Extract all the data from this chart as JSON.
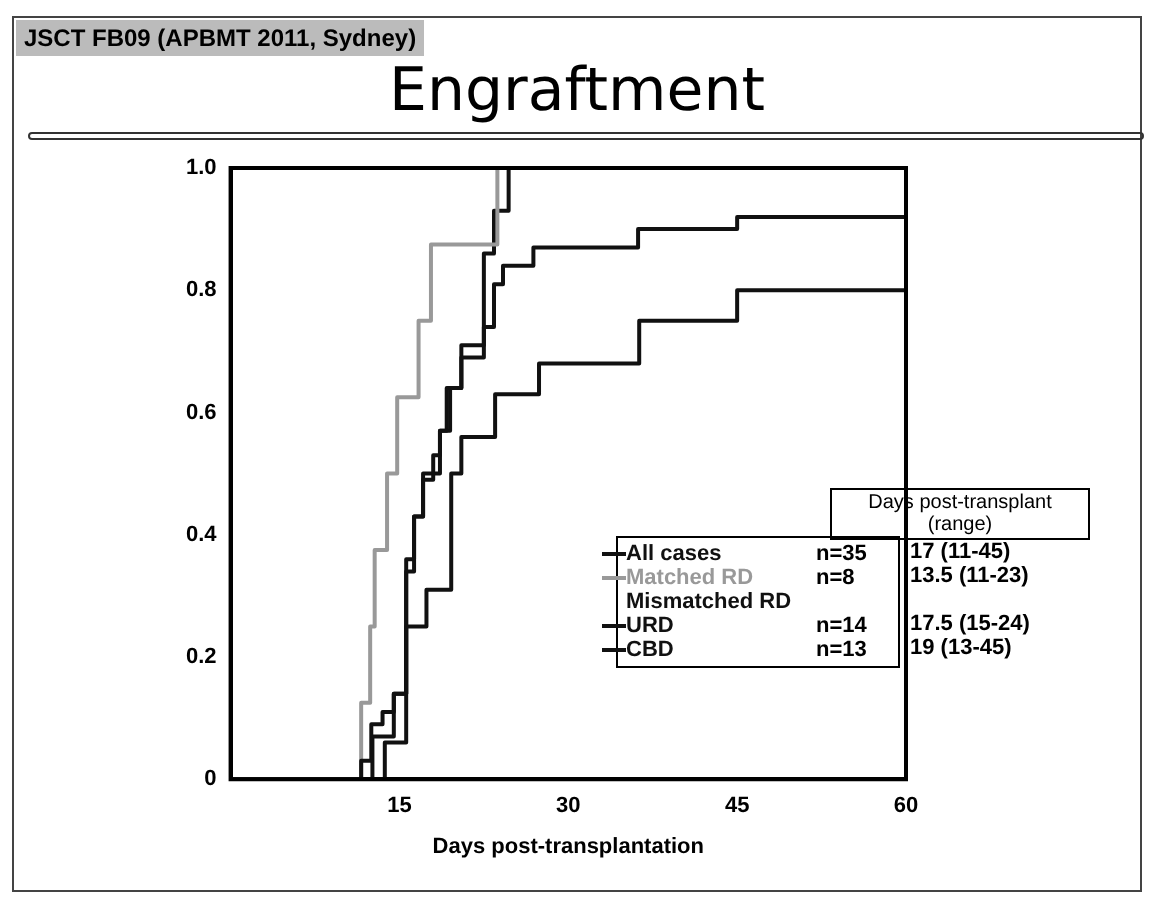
{
  "chart_data": {
    "type": "step",
    "title": "Engraftment",
    "subtitle": "JSCT FB09 (APBMT 2011, Sydney)",
    "xlabel": "Days post-transplantation",
    "xlim": [
      0,
      60
    ],
    "xticks": [
      15,
      30,
      45,
      60
    ],
    "ylim": [
      0,
      1
    ],
    "yticks": [
      0,
      0.2,
      0.4,
      0.6,
      0.8,
      {
        "value": 1,
        "label": "1.0"
      }
    ],
    "grid": false,
    "legend": "bottom right",
    "line_style": "solid",
    "marker": "none",
    "legend_title": "Days post-transplant (range)",
    "annotations": [
      "n=35",
      "17 (11-45)",
      "n=8",
      "13.5 (11-23)",
      "n=14",
      "17.5 (15-24)",
      "n=13",
      "19 (13-45)"
    ],
    "series": [
      {
        "name": "All cases",
        "color": "#111111",
        "x": [
          0,
          11.6,
          12.5,
          13.5,
          14.5,
          15.6,
          16.3,
          17.1,
          18.0,
          18.6,
          19.5,
          20.5,
          22.5,
          23.4,
          24.2,
          26.9,
          36.2,
          45,
          60
        ],
        "values": [
          0,
          0.03,
          0.09,
          0.11,
          0.14,
          0.34,
          0.43,
          0.49,
          0.53,
          0.57,
          0.64,
          0.69,
          0.74,
          0.81,
          0.84,
          0.87,
          0.9,
          0.92,
          0.92
        ]
      },
      {
        "name": "Matched RD",
        "color": "#999999",
        "x": [
          0,
          11.6,
          12.4,
          12.8,
          13.9,
          14.8,
          16.7,
          17.8,
          23.7,
          24.5
        ],
        "values": [
          0,
          0.125,
          0.25,
          0.375,
          0.5,
          0.625,
          0.75,
          0.875,
          1,
          1
        ]
      },
      {
        "name": "Mismatched RD URD",
        "color": "#111111",
        "x": [
          0,
          12.6,
          14.5,
          15.6,
          16.3,
          17.1,
          18.6,
          19.2,
          20.5,
          22.5,
          23.4,
          24.7,
          26
        ],
        "values": [
          0,
          0.07,
          0.14,
          0.36,
          0.43,
          0.5,
          0.57,
          0.64,
          0.71,
          0.86,
          0.93,
          1,
          1
        ]
      },
      {
        "name": "CBD",
        "color": "#111111",
        "x": [
          0,
          13.7,
          15.6,
          17.4,
          19.6,
          20.5,
          23.5,
          27.4,
          36.3,
          45,
          60
        ],
        "values": [
          0,
          0.06,
          0.25,
          0.31,
          0.5,
          0.56,
          0.63,
          0.68,
          0.75,
          0.8,
          0.8
        ]
      }
    ]
  }
}
